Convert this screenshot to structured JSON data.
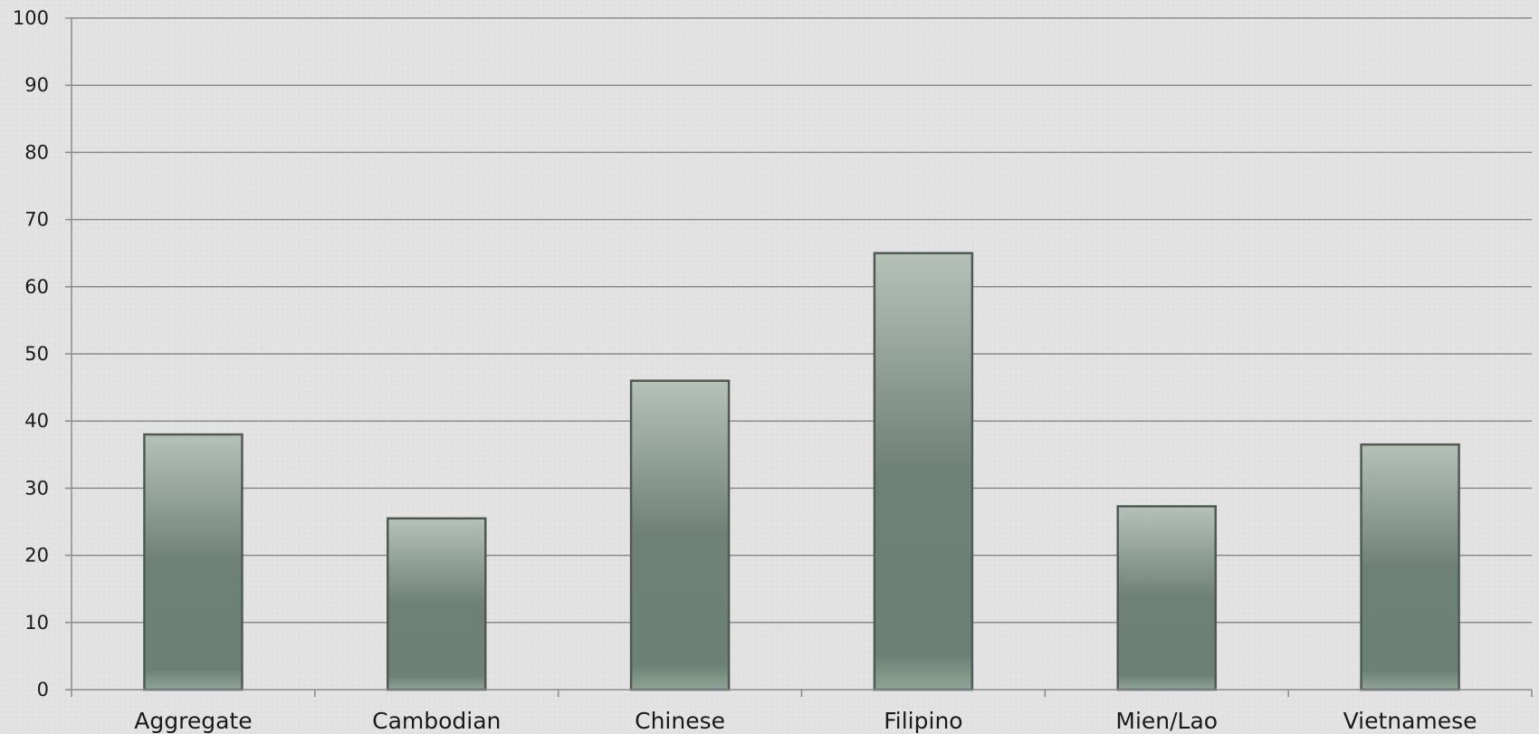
{
  "chart_data": {
    "type": "bar",
    "categories": [
      "Aggregate",
      "Cambodian",
      "Chinese",
      "Filipino",
      "Mien/Lao",
      "Vietnamese"
    ],
    "values": [
      38,
      25.5,
      46,
      65,
      27.3,
      36.5
    ],
    "ylim": [
      0,
      100
    ],
    "yticks": [
      "0",
      "10",
      "20",
      "30",
      "40",
      "50",
      "60",
      "70",
      "80",
      "90",
      "100"
    ],
    "ytick_values": [
      0,
      10,
      20,
      30,
      40,
      50,
      60,
      70,
      80,
      90,
      100
    ],
    "grid": true,
    "legend": "none",
    "colors": {
      "background": "#e2e2e2",
      "bar_top": "#b6c1b8",
      "bar_mid": "#6e8177",
      "bar_bottom": "#8fa597",
      "bar_border": "#4f5a54",
      "grid": "#8a8a8a",
      "axis": "#8a8a8a",
      "text": "#1a1a1a"
    }
  }
}
